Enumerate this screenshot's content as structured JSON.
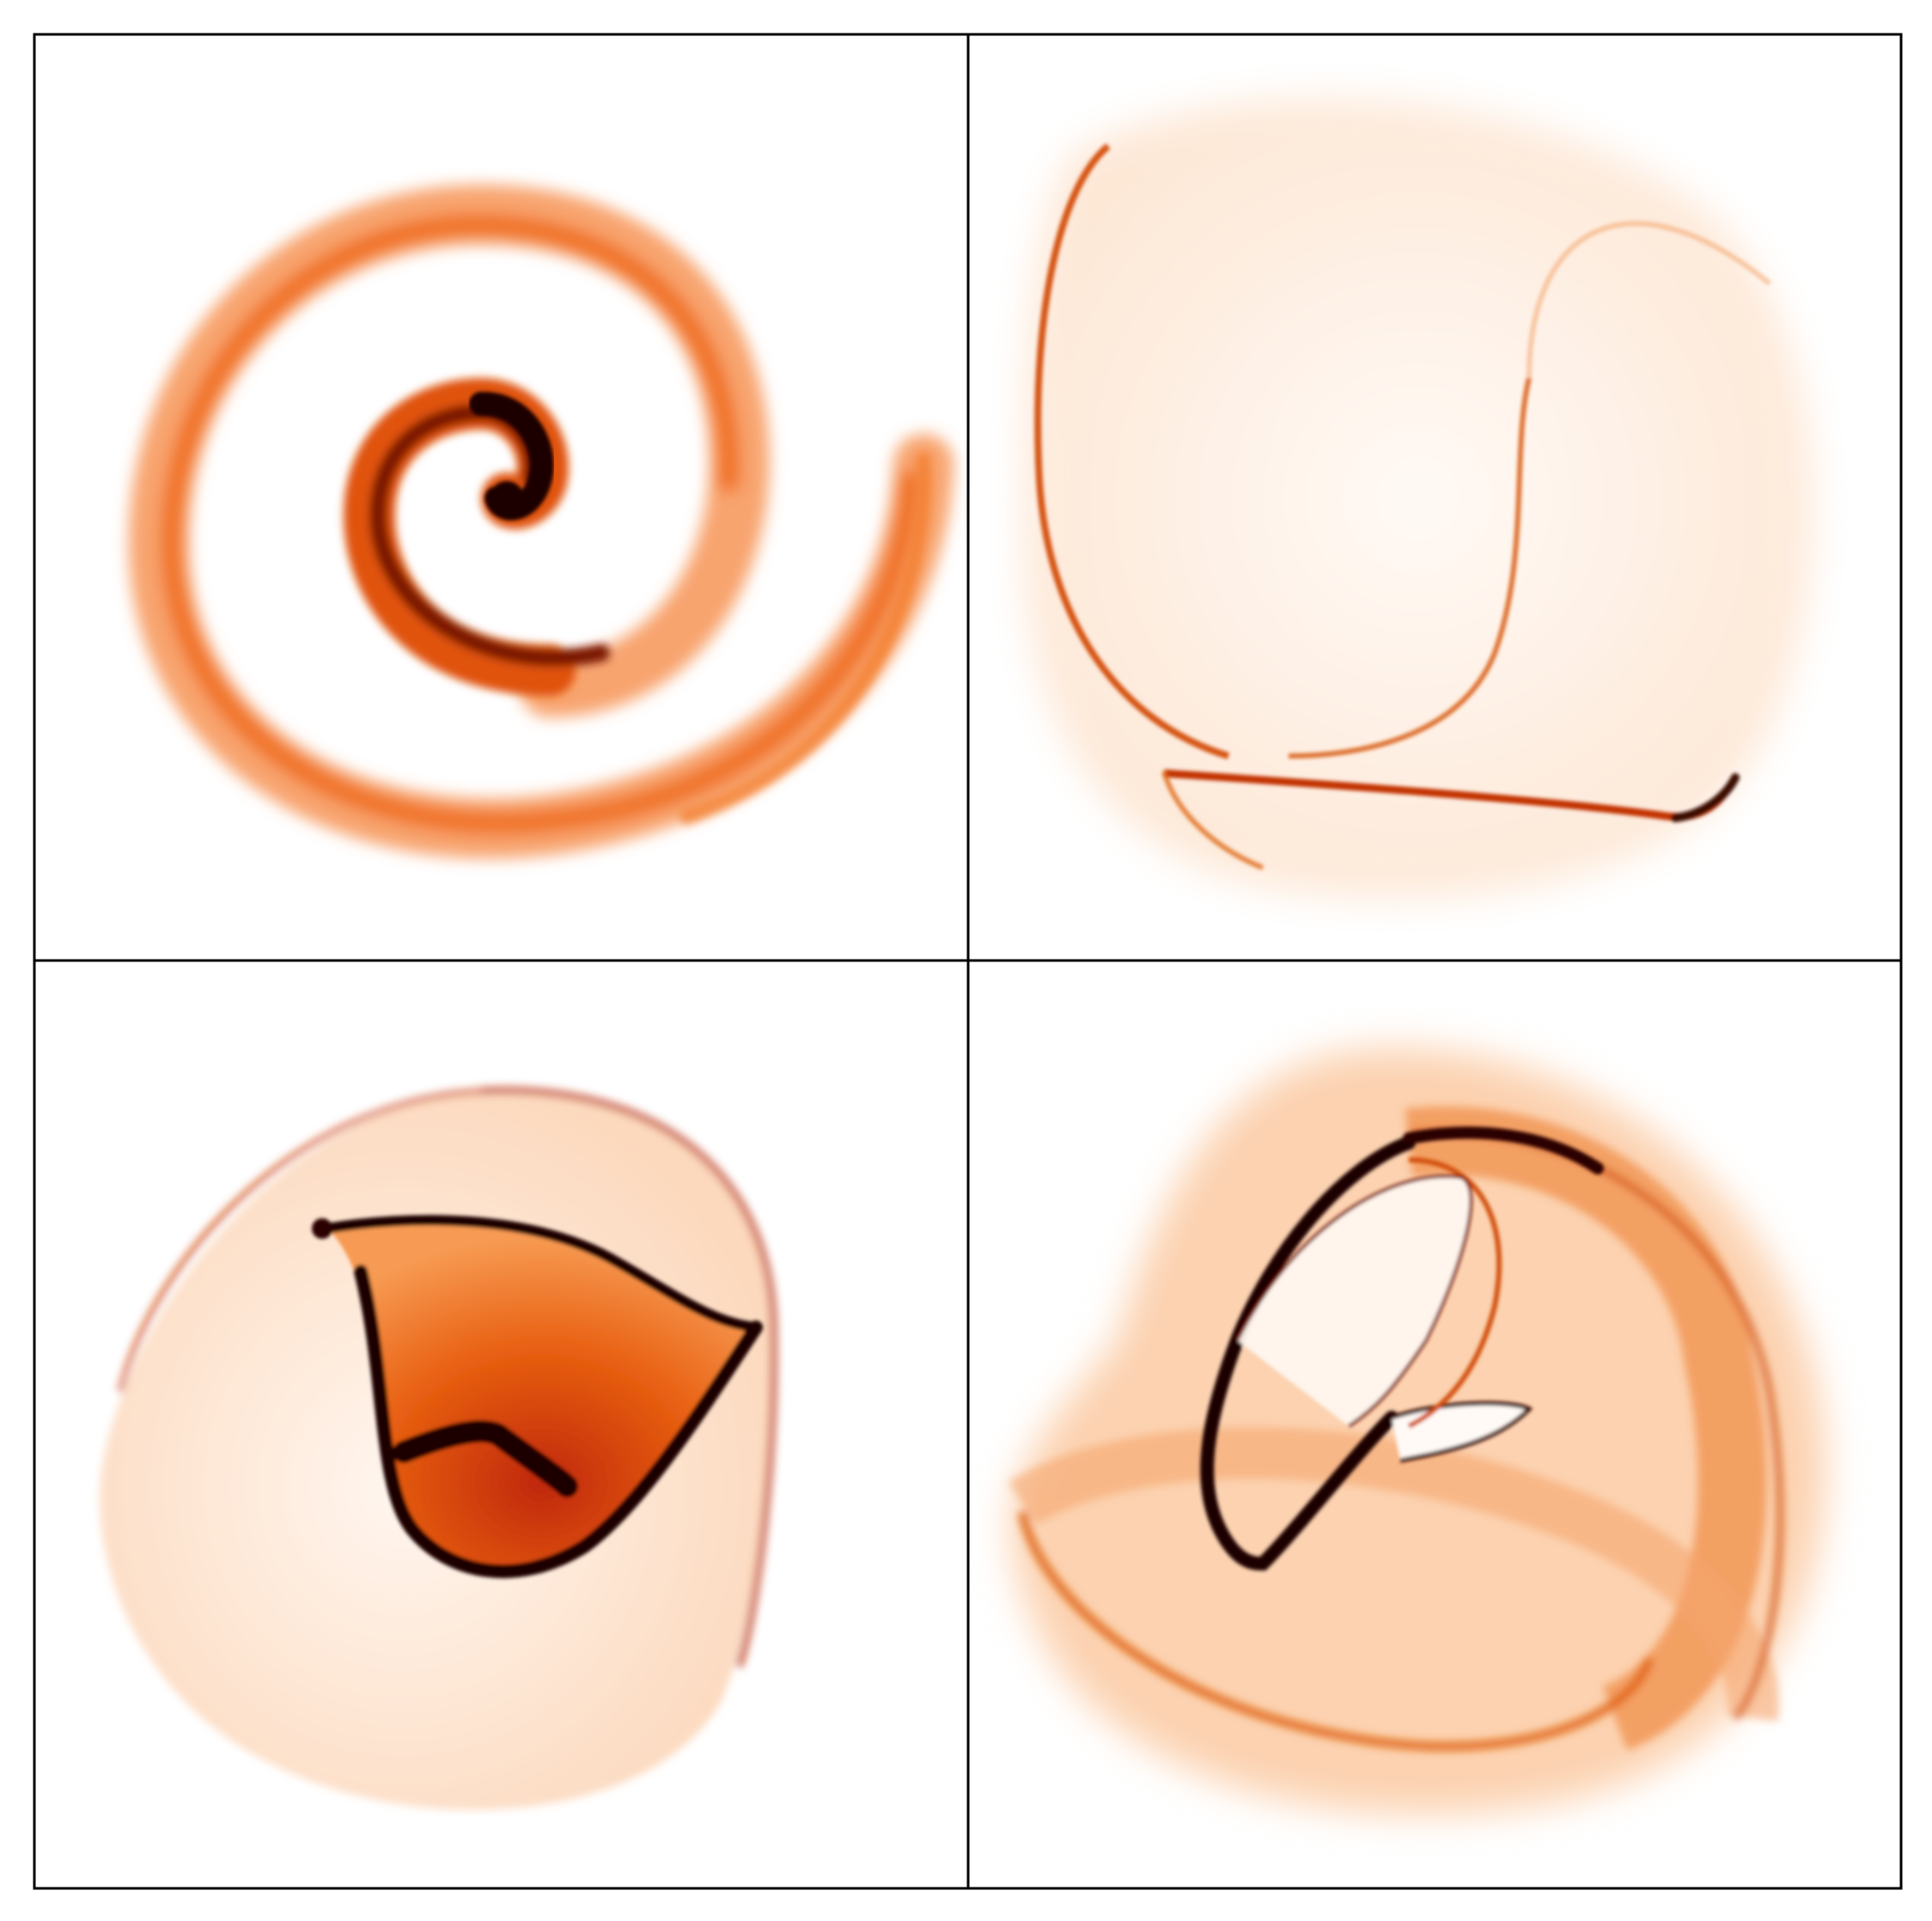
{
  "figure": {
    "panel_count": 4,
    "grid": "2x2",
    "colormap": "white-orange-black",
    "colors": {
      "background": "#ffffff",
      "frame": "#000000",
      "light": "#fde2cc",
      "mid": "#f47f2e",
      "strong": "#e85d04",
      "deep": "#b32400",
      "darkest": "#2a0500"
    },
    "panels": [
      {
        "position": "top-left",
        "pattern": "spiral"
      },
      {
        "position": "top-right",
        "pattern": "folded-sheet"
      },
      {
        "position": "bottom-left",
        "pattern": "pouch"
      },
      {
        "position": "bottom-right",
        "pattern": "twisted-loop"
      }
    ]
  }
}
